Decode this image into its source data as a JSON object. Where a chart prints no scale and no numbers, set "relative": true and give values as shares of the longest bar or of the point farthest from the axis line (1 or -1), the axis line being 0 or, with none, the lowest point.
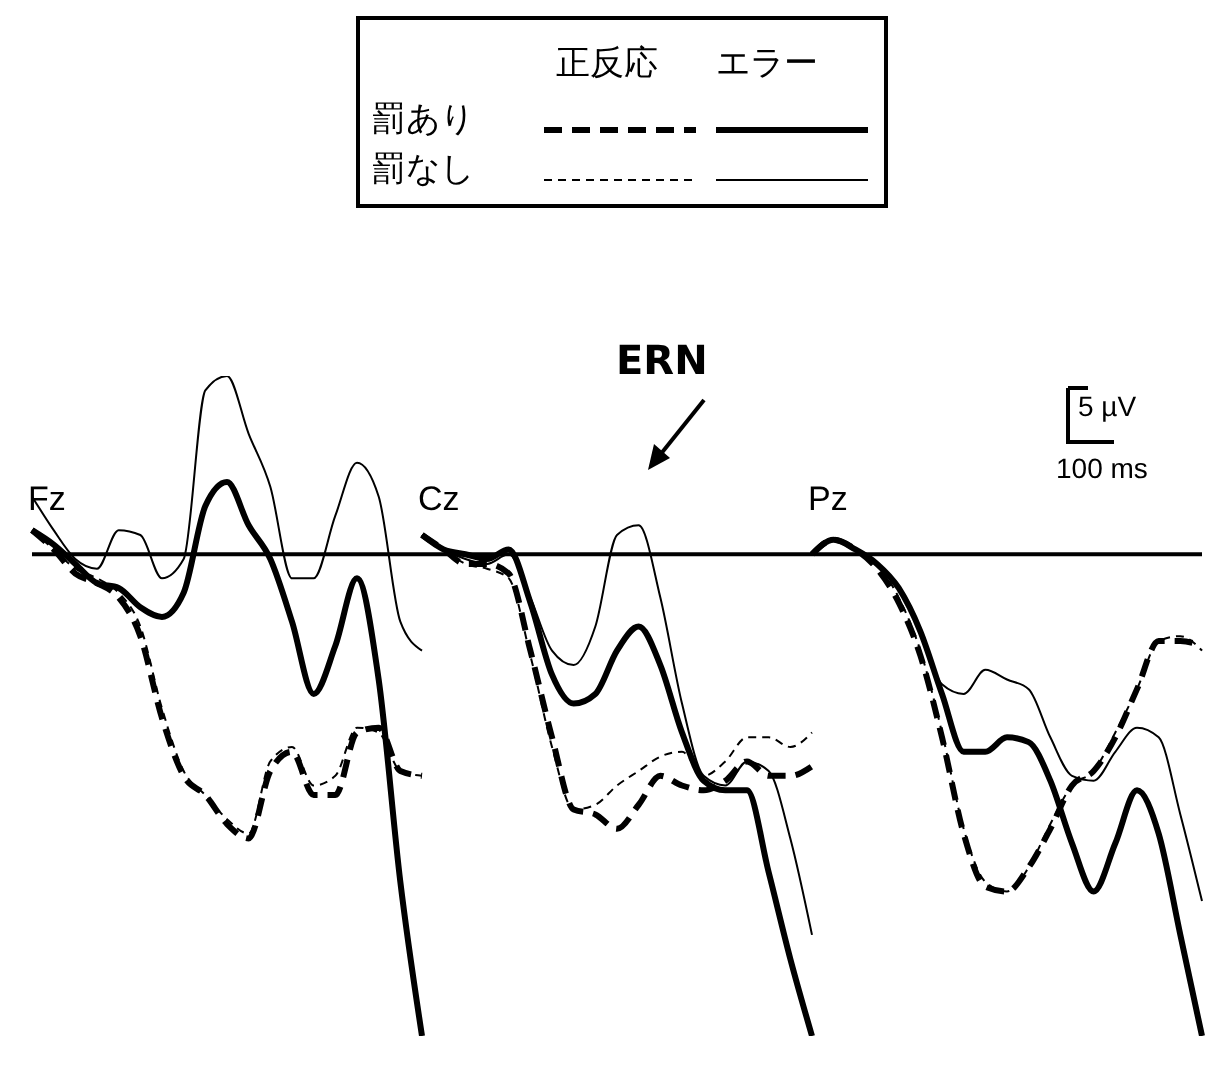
{
  "chart_data": [
    {
      "type": "line",
      "title": "Fz",
      "relative": true,
      "categories": [
        null,
        null,
        null,
        null,
        null,
        null,
        null,
        null,
        null,
        null,
        null,
        null,
        null,
        null,
        null,
        null,
        null,
        null,
        null
      ],
      "marker": "none",
      "annotations": [
        "正反応",
        "エラー",
        "罰あり",
        "罰なし"
      ],
      "series": [
        {
          "color": "#000000",
          "line_style": "dashed",
          "values": [
            0.05,
            0.01,
            -0.04,
            -0.06,
            -0.09,
            -0.17,
            -0.34,
            -0.46,
            -0.5,
            -0.56,
            -0.59,
            -0.45,
            -0.41,
            -0.5,
            -0.5,
            -0.37,
            -0.36,
            -0.45,
            -0.46
          ]
        },
        {
          "color": "#000000",
          "line_style": "dashed",
          "values": [
            0.05,
            0.01,
            -0.03,
            -0.05,
            -0.08,
            -0.15,
            -0.32,
            -0.45,
            -0.5,
            -0.55,
            -0.58,
            -0.43,
            -0.4,
            -0.48,
            -0.46,
            -0.36,
            -0.37,
            -0.45,
            -0.46
          ]
        },
        {
          "color": "#000000",
          "line_style": "solid",
          "values": [
            0.05,
            0.02,
            -0.02,
            -0.06,
            -0.07,
            -0.11,
            -0.13,
            -0.08,
            0.1,
            0.15,
            0.06,
            -0.01,
            -0.14,
            -0.29,
            -0.19,
            -0.05,
            -0.26,
            -0.68,
            -1
          ]
        },
        {
          "color": "#000000",
          "line_style": "solid",
          "values": [
            0.12,
            0.05,
            -0.01,
            -0.03,
            0.05,
            0.04,
            -0.05,
            -0.01,
            0.34,
            0.37,
            0.25,
            0.14,
            -0.05,
            -0.05,
            0.08,
            0.19,
            0.12,
            -0.14,
            -0.2
          ]
        }
      ]
    },
    {
      "type": "line",
      "title": "Cz",
      "relative": true,
      "categories": [
        null,
        null,
        null,
        null,
        null,
        null,
        null,
        null,
        null,
        null,
        null,
        null,
        null,
        null,
        null,
        null,
        null,
        null,
        null
      ],
      "marker": "none",
      "annotations": [
        "ERN"
      ],
      "series": [
        {
          "color": "#000000",
          "line_style": "dashed",
          "values": [
            0.04,
            0.01,
            -0.02,
            -0.02,
            -0.04,
            -0.2,
            -0.38,
            -0.53,
            -0.54,
            -0.57,
            -0.52,
            -0.46,
            -0.48,
            -0.49,
            -0.47,
            -0.43,
            -0.46,
            -0.46,
            -0.44
          ]
        },
        {
          "color": "#000000",
          "line_style": "dashed",
          "values": [
            0.04,
            0.01,
            -0.02,
            -0.03,
            -0.05,
            -0.21,
            -0.4,
            -0.53,
            -0.52,
            -0.48,
            -0.45,
            -0.42,
            -0.41,
            -0.46,
            -0.43,
            -0.38,
            -0.38,
            -0.4,
            -0.37
          ]
        },
        {
          "color": "#000000",
          "line_style": "solid",
          "values": [
            0.04,
            0.01,
            0,
            -0.01,
            0.01,
            -0.1,
            -0.25,
            -0.31,
            -0.29,
            -0.2,
            -0.15,
            -0.23,
            -0.37,
            -0.47,
            -0.49,
            -0.49,
            -0.66,
            -0.84,
            -1
          ]
        },
        {
          "color": "#000000",
          "line_style": "solid",
          "values": [
            0.04,
            0.01,
            -0.01,
            -0.02,
            0,
            -0.09,
            -0.2,
            -0.23,
            -0.15,
            0.04,
            0.06,
            -0.09,
            -0.31,
            -0.46,
            -0.48,
            -0.43,
            -0.45,
            -0.59,
            -0.79
          ]
        }
      ]
    },
    {
      "type": "line",
      "title": "Pz",
      "relative": true,
      "categories": [
        null,
        null,
        null,
        null,
        null,
        null,
        null,
        null,
        null,
        null,
        null,
        null,
        null,
        null,
        null,
        null,
        null,
        null,
        null
      ],
      "marker": "none",
      "annotations": [
        "5 µV",
        "100 ms"
      ],
      "series": [
        {
          "color": "#000000",
          "line_style": "dashed",
          "values": [
            0,
            0.03,
            0.01,
            -0.03,
            -0.1,
            -0.21,
            -0.38,
            -0.58,
            -0.69,
            -0.7,
            -0.65,
            -0.57,
            -0.48,
            -0.45,
            -0.38,
            -0.28,
            -0.18,
            -0.18,
            -0.19
          ]
        },
        {
          "color": "#000000",
          "line_style": "dashed",
          "values": [
            0,
            0.03,
            0.01,
            -0.02,
            -0.09,
            -0.2,
            -0.37,
            -0.57,
            -0.68,
            -0.7,
            -0.65,
            -0.56,
            -0.48,
            -0.45,
            -0.37,
            -0.28,
            -0.18,
            -0.17,
            -0.2
          ]
        },
        {
          "color": "#000000",
          "line_style": "solid",
          "values": [
            0,
            0.03,
            0.01,
            -0.02,
            -0.07,
            -0.16,
            -0.29,
            -0.41,
            -0.41,
            -0.38,
            -0.39,
            -0.47,
            -0.6,
            -0.7,
            -0.6,
            -0.49,
            -0.58,
            -0.79,
            -1
          ]
        },
        {
          "color": "#000000",
          "line_style": "solid",
          "values": [
            0,
            0.03,
            0.01,
            -0.02,
            -0.07,
            -0.16,
            -0.27,
            -0.29,
            -0.24,
            -0.26,
            -0.28,
            -0.38,
            -0.46,
            -0.47,
            -0.41,
            -0.36,
            -0.38,
            -0.54,
            -0.72
          ]
        }
      ]
    }
  ]
}
